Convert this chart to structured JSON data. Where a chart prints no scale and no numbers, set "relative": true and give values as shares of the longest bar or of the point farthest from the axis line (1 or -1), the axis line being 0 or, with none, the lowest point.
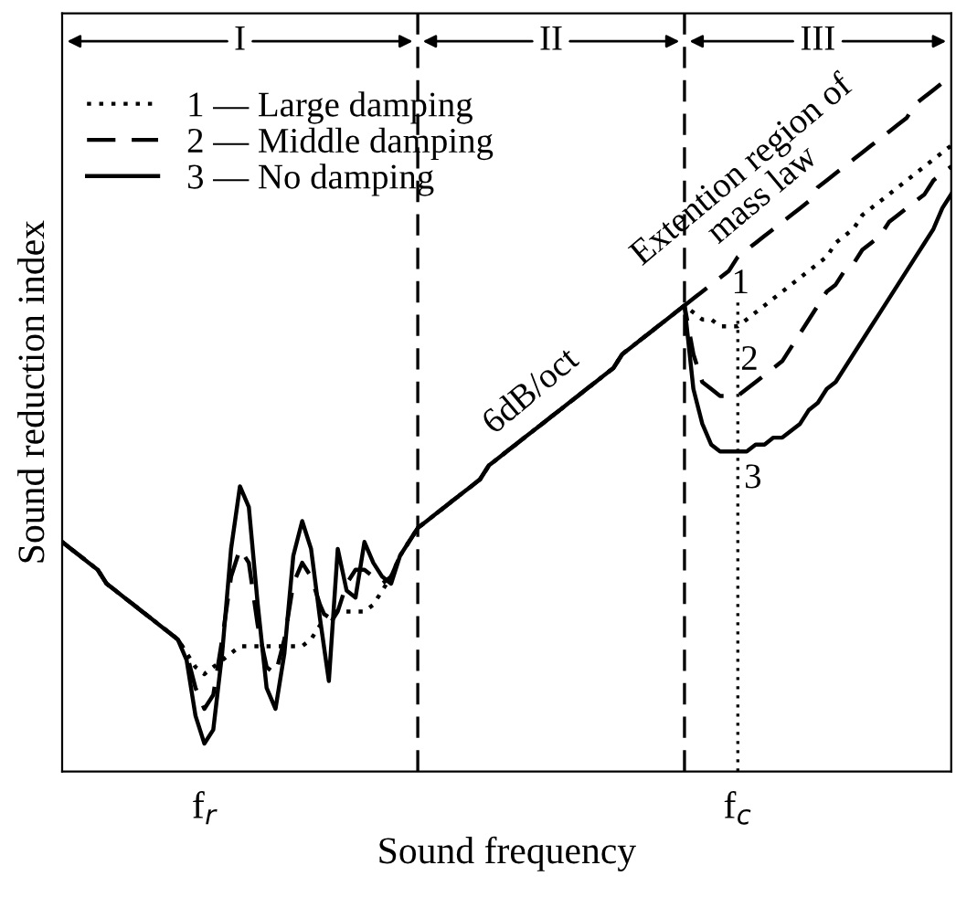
{
  "chart_data": {
    "type": "line",
    "relative": true,
    "xlabel": "Sound frequency",
    "ylabel": "Sound reduction index",
    "categories": [
      null,
      null,
      null,
      null,
      null,
      null,
      null,
      null,
      null,
      null,
      null,
      null,
      null,
      null,
      null,
      null,
      "f$_{r}$",
      null,
      null,
      null,
      null,
      null,
      null,
      null,
      null,
      null,
      null,
      null,
      null,
      null,
      null,
      null,
      null,
      null,
      null,
      null,
      null,
      null,
      null,
      null,
      null,
      null,
      null,
      null,
      null,
      null,
      null,
      null,
      null,
      null,
      null,
      null,
      null,
      null,
      null,
      null,
      null,
      null,
      null,
      null,
      null,
      null,
      null,
      null,
      null,
      null,
      null,
      null,
      null,
      null,
      null,
      null,
      null,
      null,
      null,
      null,
      "f$_{c}$",
      null,
      null,
      null,
      null,
      null,
      null,
      null,
      null,
      null,
      null,
      null,
      null,
      null,
      null,
      null,
      null,
      null,
      null,
      null,
      null,
      null,
      null,
      null,
      null
    ],
    "series": [
      {
        "name": "1 — Large damping",
        "color": "#000000",
        "line_style": "dotted",
        "values": [
          0.33,
          0.32,
          0.31,
          0.3,
          0.29,
          0.27,
          0.26,
          0.25,
          0.24,
          0.23,
          0.22,
          0.21,
          0.2,
          0.19,
          0.17,
          0.15,
          0.14,
          0.15,
          0.16,
          0.17,
          0.18,
          0.18,
          0.18,
          0.18,
          0.18,
          0.18,
          0.18,
          0.18,
          0.19,
          0.21,
          0.23,
          0.23,
          0.23,
          0.23,
          0.23,
          0.24,
          0.26,
          0.28,
          0.31,
          0.33,
          0.35,
          0.36,
          0.37,
          0.38,
          0.39,
          0.4,
          0.41,
          0.42,
          0.44,
          0.45,
          0.46,
          0.47,
          0.48,
          0.49,
          0.5,
          0.51,
          0.52,
          0.53,
          0.54,
          0.55,
          0.56,
          0.57,
          0.58,
          0.6,
          0.61,
          0.62,
          0.63,
          0.64,
          0.65,
          0.66,
          0.67,
          0.66,
          0.65,
          0.65,
          0.64,
          0.64,
          0.64,
          0.65,
          0.66,
          0.67,
          0.68,
          0.69,
          0.7,
          0.71,
          0.72,
          0.73,
          0.74,
          0.76,
          0.77,
          0.78,
          0.8,
          0.81,
          0.82,
          0.83,
          0.84,
          0.85,
          0.86,
          0.87,
          0.88,
          0.89,
          0.9
        ]
      },
      {
        "name": "2 — Middle damping",
        "color": "#000000",
        "line_style": "dashed",
        "values": [
          0.33,
          0.32,
          0.31,
          0.3,
          0.29,
          0.27,
          0.26,
          0.25,
          0.24,
          0.23,
          0.22,
          0.21,
          0.2,
          0.19,
          0.17,
          0.12,
          0.09,
          0.11,
          0.19,
          0.28,
          0.32,
          0.3,
          0.21,
          0.15,
          0.14,
          0.19,
          0.27,
          0.3,
          0.28,
          0.24,
          0.21,
          0.23,
          0.27,
          0.29,
          0.29,
          0.28,
          0.27,
          0.28,
          0.31,
          0.33,
          0.35,
          0.36,
          0.37,
          0.38,
          0.39,
          0.4,
          0.41,
          0.42,
          0.44,
          0.45,
          0.46,
          0.47,
          0.48,
          0.49,
          0.5,
          0.51,
          0.52,
          0.53,
          0.54,
          0.55,
          0.56,
          0.57,
          0.58,
          0.6,
          0.61,
          0.62,
          0.63,
          0.64,
          0.65,
          0.66,
          0.67,
          0.6,
          0.56,
          0.55,
          0.54,
          0.54,
          0.54,
          0.55,
          0.56,
          0.57,
          0.58,
          0.59,
          0.61,
          0.63,
          0.65,
          0.67,
          0.69,
          0.7,
          0.72,
          0.73,
          0.75,
          0.76,
          0.77,
          0.79,
          0.8,
          0.81,
          0.82,
          0.83,
          0.85,
          0.86,
          0.87
        ]
      },
      {
        "name": "3 — No damping",
        "color": "#000000",
        "line_style": "solid",
        "values": [
          0.33,
          0.32,
          0.31,
          0.3,
          0.29,
          0.27,
          0.26,
          0.25,
          0.24,
          0.23,
          0.22,
          0.21,
          0.2,
          0.19,
          0.16,
          0.08,
          0.04,
          0.06,
          0.17,
          0.32,
          0.41,
          0.38,
          0.24,
          0.12,
          0.09,
          0.17,
          0.31,
          0.36,
          0.32,
          0.22,
          0.13,
          0.32,
          0.26,
          0.25,
          0.33,
          0.3,
          0.28,
          0.27,
          0.31,
          0.33,
          0.35,
          0.36,
          0.37,
          0.38,
          0.39,
          0.4,
          0.41,
          0.42,
          0.44,
          0.45,
          0.46,
          0.47,
          0.48,
          0.49,
          0.5,
          0.51,
          0.52,
          0.53,
          0.54,
          0.55,
          0.56,
          0.57,
          0.58,
          0.6,
          0.61,
          0.62,
          0.63,
          0.64,
          0.65,
          0.66,
          0.67,
          0.55,
          0.5,
          0.47,
          0.46,
          0.46,
          0.46,
          0.46,
          0.47,
          0.47,
          0.48,
          0.48,
          0.49,
          0.5,
          0.52,
          0.53,
          0.55,
          0.56,
          0.58,
          0.6,
          0.62,
          0.64,
          0.66,
          0.68,
          0.7,
          0.72,
          0.74,
          0.76,
          0.78,
          0.81,
          0.83
        ]
      },
      {
        "color": "#000000",
        "line_style": "dashed",
        "values": [
          null,
          null,
          null,
          null,
          null,
          null,
          null,
          null,
          null,
          null,
          null,
          null,
          null,
          null,
          null,
          null,
          null,
          null,
          null,
          null,
          null,
          null,
          null,
          null,
          null,
          null,
          null,
          null,
          null,
          null,
          null,
          null,
          null,
          null,
          null,
          null,
          null,
          null,
          null,
          null,
          null,
          null,
          null,
          null,
          null,
          null,
          null,
          null,
          null,
          null,
          null,
          null,
          null,
          null,
          null,
          null,
          null,
          null,
          null,
          null,
          null,
          null,
          null,
          null,
          null,
          null,
          null,
          null,
          null,
          null,
          0.67,
          0.68,
          0.69,
          0.7,
          0.71,
          0.72,
          0.74,
          0.75,
          0.76,
          0.77,
          0.78,
          0.79,
          0.8,
          0.81,
          0.82,
          0.84,
          0.85,
          0.86,
          0.87,
          0.88,
          0.89,
          0.9,
          0.91,
          0.92,
          0.93,
          0.94,
          0.96,
          0.97,
          0.98,
          0.99,
          1.0
        ]
      }
    ],
    "ref_lines": [
      {
        "axis": "x",
        "value": "f$_{c}$",
        "line_style": "dotted",
        "color": "#000000"
      }
    ],
    "annotations": [
      "I",
      "II",
      "III",
      "6dB/oct",
      "Extention region of\nmass law",
      "1",
      "2",
      "3"
    ],
    "legend": "top left",
    "grid": false
  }
}
